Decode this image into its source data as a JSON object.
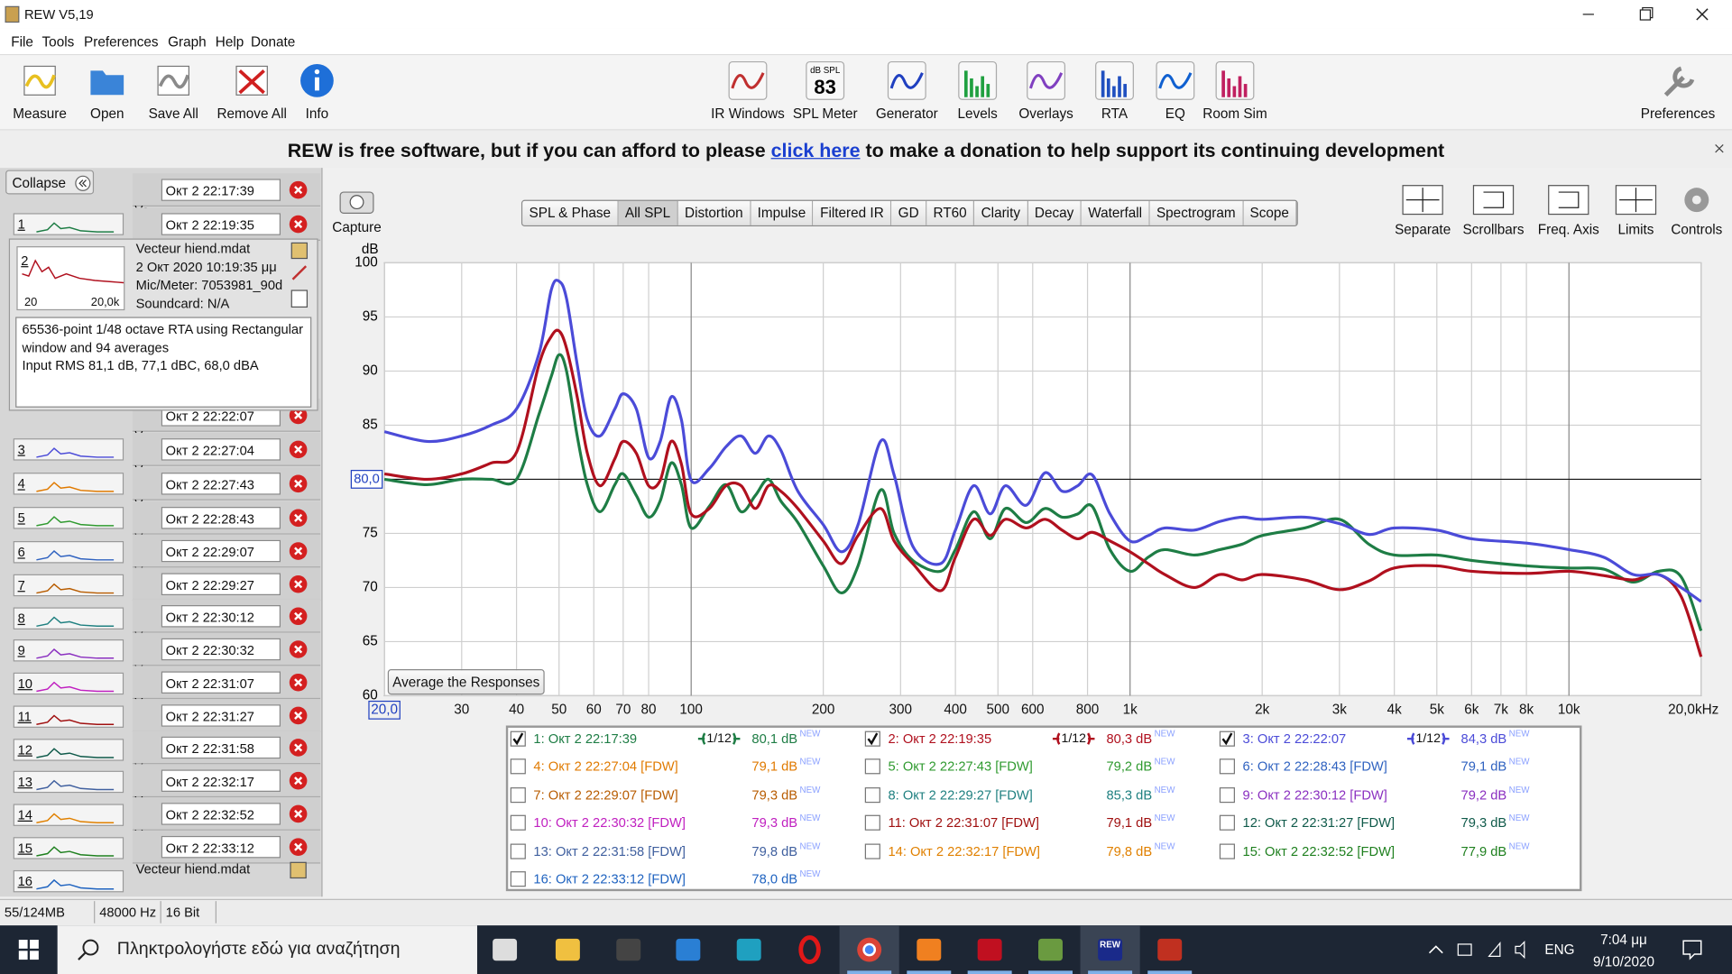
{
  "window": {
    "title": "REW V5,19"
  },
  "menu": [
    "File",
    "Tools",
    "Preferences",
    "Graph",
    "Help",
    "Donate"
  ],
  "toolbar_left": [
    "Measure",
    "Open",
    "Save All",
    "Remove All",
    "Info"
  ],
  "toolbar_center": [
    "IR Windows",
    "SPL Meter",
    "Generator",
    "Levels",
    "Overlays",
    "RTA",
    "EQ",
    "Room Sim"
  ],
  "spl_icon": {
    "unit": "dB SPL",
    "reading": "83"
  },
  "toolbar_right": "Preferences",
  "banner": {
    "before": "REW is free software, but if you can afford to please",
    "link": "click here",
    "after": "to make a donation to help support its continuing development"
  },
  "sidebar": {
    "collapse": "Collapse",
    "truncated_label": "Ve",
    "measurements": [
      {
        "number": "1",
        "name": "Окт 2 22:17:39"
      },
      {
        "number": "2",
        "name": "Окт 2 22:19:35"
      },
      {
        "number": "3",
        "name": "Окт 2 22:22:07"
      },
      {
        "number": "4",
        "name": "Окт 2 22:27:04"
      },
      {
        "number": "5",
        "name": "Окт 2 22:27:43"
      },
      {
        "number": "6",
        "name": "Окт 2 22:28:43"
      },
      {
        "number": "7",
        "name": "Окт 2 22:29:07"
      },
      {
        "number": "8",
        "name": "Окт 2 22:29:27"
      },
      {
        "number": "9",
        "name": "Окт 2 22:30:12"
      },
      {
        "number": "10",
        "name": "Окт 2 22:30:32"
      },
      {
        "number": "11",
        "name": "Окт 2 22:31:07"
      },
      {
        "number": "12",
        "name": "Окт 2 22:31:27"
      },
      {
        "number": "13",
        "name": "Окт 2 22:31:58"
      },
      {
        "number": "14",
        "name": "Окт 2 22:32:17"
      },
      {
        "number": "15",
        "name": "Окт 2 22:32:52"
      },
      {
        "number": "16",
        "name": "Окт 2 22:33:12"
      }
    ],
    "expanded": {
      "file": "Vecteur hiend.mdat",
      "date": "2 Окт 2020 10:19:35 μμ",
      "mic": "Mic/Meter: 7053981_90d",
      "soundcard": "Soundcard: N/A",
      "thumb_min": "20",
      "thumb_max": "20,0k",
      "notes": [
        "65536-point 1/48 octave RTA using Rectangular",
        "window and 94 averages",
        "Input RMS 81,1 dB, 77,1 dBC, 68,0 dBA"
      ]
    },
    "last_file": "Vecteur hiend.mdat"
  },
  "capture": "Capture",
  "graph_tabs": [
    {
      "label": "SPL & Phase"
    },
    {
      "label": "All SPL",
      "active": true
    },
    {
      "label": "Distortion"
    },
    {
      "label": "Impulse"
    },
    {
      "label": "Filtered IR"
    },
    {
      "label": "GD"
    },
    {
      "label": "RT60"
    },
    {
      "label": "Clarity"
    },
    {
      "label": "Decay"
    },
    {
      "label": "Waterfall"
    },
    {
      "label": "Spectrogram"
    },
    {
      "label": "Scope"
    }
  ],
  "graph_tools": [
    "Separate",
    "Scrollbars",
    "Freq. Axis",
    "Limits",
    "Controls"
  ],
  "chart_data": {
    "type": "line",
    "y_label": "dB",
    "x_scale": "log",
    "grid": true,
    "xlim": [
      20,
      20000
    ],
    "ylim": [
      60,
      100
    ],
    "yticks": [
      60,
      65,
      70,
      75,
      80,
      85,
      90,
      95,
      100
    ],
    "xticks": [
      {
        "value": 20,
        "label": "20,0"
      },
      30,
      40,
      50,
      60,
      70,
      80,
      100,
      200,
      300,
      400,
      500,
      600,
      800,
      {
        "value": 1000,
        "label": "1k"
      },
      {
        "value": 2000,
        "label": "2k"
      },
      {
        "value": 3000,
        "label": "3k"
      },
      {
        "value": 4000,
        "label": "4k"
      },
      {
        "value": 5000,
        "label": "5k"
      },
      {
        "value": 6000,
        "label": "6k"
      },
      {
        "value": 7000,
        "label": "7k"
      },
      {
        "value": 8000,
        "label": "8k"
      },
      {
        "value": 10000,
        "label": "10k"
      },
      {
        "value": 20000,
        "label": "20,0kHz"
      }
    ],
    "cursor": {
      "value": 80,
      "label": "80,0"
    },
    "average_button": "Average the Responses",
    "badge": "NEW",
    "x": [
      20,
      25,
      30,
      35,
      40,
      45,
      48,
      50,
      52,
      55,
      58,
      62,
      67,
      70,
      75,
      80,
      85,
      90,
      95,
      100,
      110,
      120,
      130,
      140,
      150,
      160,
      175,
      200,
      220,
      240,
      270,
      290,
      320,
      370,
      400,
      440,
      480,
      520,
      580,
      640,
      700,
      760,
      820,
      900,
      1000,
      1100,
      1200,
      1400,
      1600,
      1800,
      2000,
      2500,
      3000,
      3500,
      4000,
      5000,
      6000,
      8000,
      10000,
      12000,
      14000,
      16000,
      18000,
      20000
    ],
    "series": [
      {
        "name": "1: Окт 2 22:17:39",
        "color": "#1e7d45",
        "checked": true,
        "smoothing": "1/12",
        "level": "80,1 dB",
        "values": [
          80,
          79.5,
          80,
          80,
          80,
          86,
          89.5,
          91.5,
          90,
          84,
          79.5,
          77,
          79.5,
          80.5,
          78.5,
          76.5,
          78,
          81.5,
          79.5,
          75.5,
          77.5,
          79.5,
          77,
          78.5,
          80,
          78,
          76,
          72,
          69.5,
          72,
          79,
          75,
          72.5,
          71.5,
          73.5,
          77,
          74.5,
          77.3,
          76,
          77.3,
          76.5,
          76.8,
          77.5,
          73.5,
          71.5,
          72.8,
          73.5,
          73,
          73.5,
          74,
          74.8,
          75.5,
          76.3,
          74,
          73,
          73,
          72.5,
          72,
          71.8,
          71.7,
          70.5,
          71.5,
          71,
          66
        ]
      },
      {
        "name": "2: Окт 2 22:19:35",
        "color": "#b0101e",
        "checked": true,
        "smoothing": "1/12",
        "level": "80,3 dB",
        "values": [
          80.5,
          80,
          80.5,
          81.5,
          82.5,
          90.6,
          93.2,
          93.7,
          92.1,
          87.6,
          82.4,
          79.4,
          81.9,
          83.5,
          82.4,
          79.4,
          79.9,
          83.5,
          81.4,
          76.8,
          77.3,
          79.4,
          79.4,
          77.3,
          79.4,
          78.9,
          77.3,
          74.3,
          72.2,
          74.8,
          77.3,
          74.3,
          72.2,
          69.7,
          72.8,
          76.3,
          74.8,
          76.3,
          75.5,
          76.3,
          75.3,
          74.5,
          75.1,
          74.3,
          73.3,
          72.2,
          71.2,
          70,
          71.2,
          70.7,
          71.2,
          70.7,
          69.8,
          70.6,
          71.8,
          72,
          71.5,
          71.3,
          71.5,
          71.1,
          70.7,
          71.2,
          69.2,
          63.6
        ]
      },
      {
        "name": "3: Окт 2 22:22:07",
        "color": "#4b4bd8",
        "checked": true,
        "smoothing": "1/12",
        "level": "84,3 dB",
        "values": [
          84.4,
          83.5,
          84,
          85,
          86.5,
          91.6,
          97.5,
          98.3,
          96.7,
          90.6,
          85.5,
          84,
          86.5,
          87.9,
          86.5,
          82,
          83.5,
          87.6,
          85.5,
          79.9,
          81,
          83,
          84,
          82.4,
          84,
          82.7,
          78.9,
          75.8,
          73.3,
          75.8,
          83.5,
          80.4,
          73.8,
          72.2,
          75.3,
          79.4,
          76.8,
          79.4,
          77.6,
          80.6,
          78.9,
          79.4,
          80.4,
          76.8,
          74.3,
          74.8,
          75.5,
          75.3,
          76.1,
          76.5,
          76.3,
          76.5,
          75.9,
          74.9,
          75.5,
          75.3,
          74.5,
          74.1,
          73.5,
          72.8,
          71.2,
          71.2,
          70,
          68.7
        ]
      }
    ],
    "inactive_measurements": [
      {
        "name": "4: Окт 2 22:27:04 [FDW]",
        "color": "#e07a00",
        "checked": false,
        "level": "79,1 dB"
      },
      {
        "name": "5: Окт 2 22:27:43 [FDW]",
        "color": "#2f9a2f",
        "checked": false,
        "level": "79,2 dB"
      },
      {
        "name": "6: Окт 2 22:28:43 [FDW]",
        "color": "#2f62c0",
        "checked": false,
        "level": "79,1 dB"
      },
      {
        "name": "7: Окт 2 22:29:07 [FDW]",
        "color": "#b85c00",
        "checked": false,
        "level": "79,3 dB"
      },
      {
        "name": "8: Окт 2 22:29:27 [FDW]",
        "color": "#1f8080",
        "checked": false,
        "level": "85,3 dB"
      },
      {
        "name": "9: Окт 2 22:30:12 [FDW]",
        "color": "#8a2fc0",
        "checked": false,
        "level": "79,2 dB"
      },
      {
        "name": "10: Окт 2 22:30:32 [FDW]",
        "color": "#c020c0",
        "checked": false,
        "level": "79,3 dB"
      },
      {
        "name": "11: Окт 2 22:31:07 [FDW]",
        "color": "#a01010",
        "checked": false,
        "level": "79,1 dB"
      },
      {
        "name": "12: Окт 2 22:31:27 [FDW]",
        "color": "#0f5a4a",
        "checked": false,
        "level": "79,3 dB"
      },
      {
        "name": "13: Окт 2 22:31:58 [FDW]",
        "color": "#40609f",
        "checked": false,
        "level": "79,8 dB"
      },
      {
        "name": "14: Окт 2 22:32:17 [FDW]",
        "color": "#e08000",
        "checked": false,
        "level": "79,8 dB"
      },
      {
        "name": "15: Окт 2 22:32:52 [FDW]",
        "color": "#1f801f",
        "checked": false,
        "level": "77,9 dB"
      },
      {
        "name": "16: Окт 2 22:33:12 [FDW]",
        "color": "#1f63c0",
        "checked": false,
        "level": "78,0 dB"
      }
    ]
  },
  "status": [
    "55/124MB",
    "48000 Hz",
    "16 Bit"
  ],
  "taskbar": {
    "search": "Πληκτρολογήστε εδώ για αναζήτηση",
    "rew_icon": "REW",
    "language": "ENG",
    "time": "7:04 μμ",
    "date": "9/10/2020"
  }
}
